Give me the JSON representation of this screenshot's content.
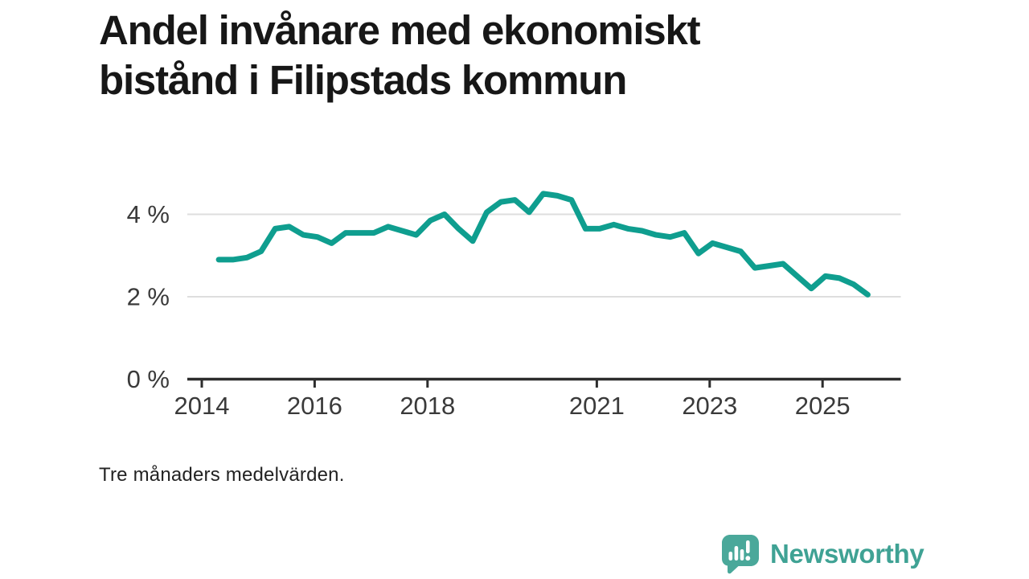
{
  "page": {
    "title_lines": [
      "Andel invånare med ekonomiskt",
      "bistånd i Filipstads kommun"
    ],
    "footnote": "Tre månaders medelvärden.",
    "brand": {
      "name": "Newsworthy",
      "icon": "bar-chart-speech-bubble-icon",
      "text_color": "#3fa294",
      "icon_color": "#4aa89a"
    }
  },
  "colors": {
    "line": "#0f9e8f",
    "grid": "#dedede",
    "axis": "#2d2d2d",
    "tick_label": "#3a3a3a",
    "title_text": "#171717",
    "footnote_text": "#232323"
  },
  "chart_data": {
    "type": "line",
    "title": "Andel invånare med ekonomiskt bistånd i Filipstads kommun",
    "subtitle": "Tre månaders medelvärden.",
    "unit": "%",
    "xlabel": "",
    "ylabel": "",
    "grid": "horizontal",
    "legend_position": "none",
    "xlim": [
      2013.74,
      2026.38
    ],
    "ylim": [
      0,
      4.7
    ],
    "x_ticks": [
      2014,
      2016,
      2018,
      2021,
      2023,
      2025
    ],
    "x_tick_labels": [
      "2014",
      "2016",
      "2018",
      "2021",
      "2023",
      "2025"
    ],
    "y_ticks": [
      4,
      2,
      0
    ],
    "y_tick_labels": [
      "4 %",
      "2 %",
      "0 %"
    ],
    "series": [
      {
        "name": "Andel invånare med ekonomiskt bistånd, Filipstads kommun",
        "periods": [
          "2014 Q2",
          "2014 Q3",
          "2014 Q4",
          "2015 Q1",
          "2015 Q2",
          "2015 Q3",
          "2015 Q4",
          "2016 Q1",
          "2016 Q2",
          "2016 Q3",
          "2016 Q4",
          "2017 Q1",
          "2017 Q2",
          "2017 Q3",
          "2017 Q4",
          "2018 Q1",
          "2018 Q2",
          "2018 Q3",
          "2018 Q4",
          "2019 Q1",
          "2019 Q2",
          "2019 Q3",
          "2019 Q4",
          "2020 Q1",
          "2020 Q2",
          "2020 Q3",
          "2020 Q4",
          "2021 Q1",
          "2021 Q2",
          "2021 Q3",
          "2021 Q4",
          "2022 Q1",
          "2022 Q2",
          "2022 Q3",
          "2022 Q4",
          "2023 Q1",
          "2023 Q2",
          "2023 Q3",
          "2023 Q4",
          "2024 Q1",
          "2024 Q2",
          "2024 Q3",
          "2024 Q4",
          "2025 Q1",
          "2025 Q2",
          "2025 Q3",
          "2025 Q4"
        ],
        "x": [
          2014.3,
          2014.55,
          2014.8,
          2015.05,
          2015.3,
          2015.55,
          2015.8,
          2016.05,
          2016.3,
          2016.55,
          2016.8,
          2017.05,
          2017.3,
          2017.55,
          2017.8,
          2018.05,
          2018.3,
          2018.55,
          2018.8,
          2019.05,
          2019.3,
          2019.55,
          2019.8,
          2020.05,
          2020.3,
          2020.55,
          2020.8,
          2021.05,
          2021.3,
          2021.55,
          2021.8,
          2022.05,
          2022.3,
          2022.55,
          2022.8,
          2023.05,
          2023.3,
          2023.55,
          2023.8,
          2024.05,
          2024.3,
          2024.55,
          2024.8,
          2025.05,
          2025.3,
          2025.55,
          2025.8
        ],
        "values": [
          2.9,
          2.9,
          2.95,
          3.1,
          3.65,
          3.7,
          3.5,
          3.45,
          3.3,
          3.55,
          3.55,
          3.55,
          3.7,
          3.6,
          3.5,
          3.85,
          4.0,
          3.65,
          3.35,
          4.05,
          4.3,
          4.35,
          4.05,
          4.5,
          4.45,
          4.35,
          3.65,
          3.65,
          3.75,
          3.65,
          3.6,
          3.5,
          3.45,
          3.55,
          3.05,
          3.3,
          3.2,
          3.1,
          2.7,
          2.75,
          2.8,
          2.5,
          2.2,
          2.5,
          2.45,
          2.3,
          2.05
        ]
      }
    ]
  }
}
